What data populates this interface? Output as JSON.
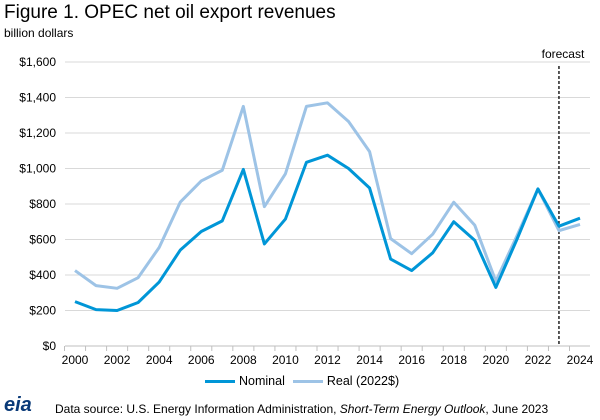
{
  "chart_data": {
    "type": "line",
    "title": "Figure 1. OPEC net oil export revenues",
    "ylabel": "billion dollars",
    "x": [
      2000,
      2001,
      2002,
      2003,
      2004,
      2005,
      2006,
      2007,
      2008,
      2009,
      2010,
      2011,
      2012,
      2013,
      2014,
      2015,
      2016,
      2017,
      2018,
      2019,
      2020,
      2021,
      2022,
      2023,
      2024
    ],
    "xticks": [
      "2000",
      "2002",
      "2004",
      "2006",
      "2008",
      "2010",
      "2012",
      "2014",
      "2016",
      "2018",
      "2020",
      "2022",
      "2024"
    ],
    "yticks": [
      "$0",
      "$200",
      "$400",
      "$600",
      "$800",
      "$1,000",
      "$1,200",
      "$1,400",
      "$1,600"
    ],
    "ylim": [
      0,
      1600
    ],
    "xlim": [
      2000,
      2024
    ],
    "grid": true,
    "legend_position": "bottom",
    "forecast_start": 2023,
    "forecast_label": "forecast",
    "series": [
      {
        "name": "Nominal",
        "color": "#0096d7",
        "values": [
          250,
          205,
          200,
          245,
          360,
          540,
          645,
          705,
          995,
          575,
          715,
          1035,
          1075,
          1000,
          890,
          490,
          425,
          525,
          700,
          595,
          330,
          600,
          885,
          675,
          720
        ]
      },
      {
        "name": "Real (2022$)",
        "color": "#9dc3e6",
        "values": [
          425,
          340,
          325,
          385,
          555,
          810,
          930,
          990,
          1350,
          785,
          970,
          1350,
          1370,
          1265,
          1095,
          605,
          520,
          630,
          810,
          680,
          365,
          620,
          885,
          650,
          685
        ]
      }
    ]
  },
  "footer": {
    "logo": "eia",
    "source_prefix": "Data source: U.S. Energy Information Administration, ",
    "source_italic": "Short-Term Energy Outlook",
    "source_suffix": ", June 2023"
  }
}
